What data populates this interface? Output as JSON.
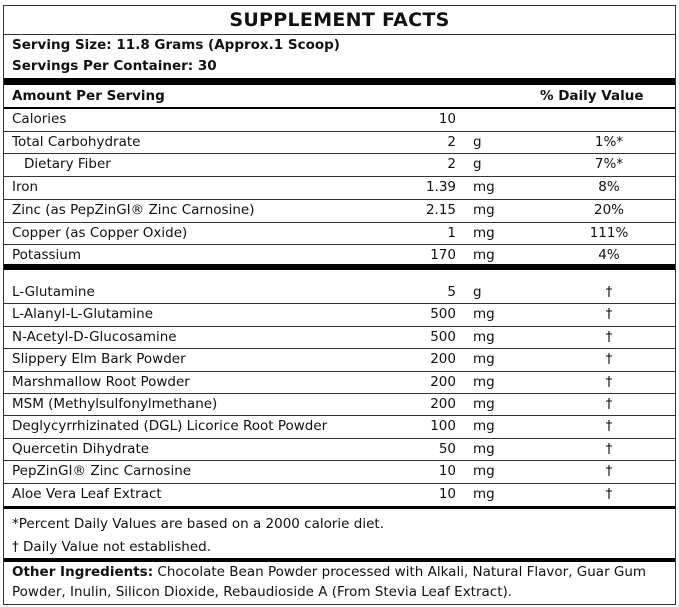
{
  "header": {
    "title": "SUPPLEMENT FACTS"
  },
  "serving": {
    "size": "Serving Size: 11.8 Grams (Approx.1 Scoop)",
    "per_container": "Servings Per Container: 30"
  },
  "table": {
    "header": {
      "amount": "Amount Per Serving",
      "daily_value": "% Daily Value"
    },
    "groups": [
      [
        {
          "name": "Calories",
          "amount": "10"
        },
        {
          "name": "Total Carbohydrate",
          "amount": "2",
          "unit": "g",
          "dv": "1%*"
        },
        {
          "name": "Dietary Fiber",
          "amount": "2",
          "unit": "g",
          "dv": "7%*",
          "indent": true
        },
        {
          "name": "Iron",
          "amount": "1.39",
          "unit": "mg",
          "dv": "8%"
        },
        {
          "name": "Zinc (as PepZinGI® Zinc Carnosine)",
          "amount": "2.15",
          "unit": "mg",
          "dv": "20%"
        },
        {
          "name": "Copper (as Copper Oxide)",
          "amount": "1",
          "unit": "mg",
          "dv": "111%"
        },
        {
          "name": "Potassium",
          "amount": "170",
          "unit": "mg",
          "dv": "4%"
        }
      ],
      [
        {
          "name": "L-Glutamine",
          "amount": "5",
          "unit": "g",
          "dv": "†"
        },
        {
          "name": "L-Alanyl-L-Glutamine",
          "amount": "500",
          "unit": "mg",
          "dv": "†"
        },
        {
          "name": "N-Acetyl-D-Glucosamine",
          "amount": "500",
          "unit": "mg",
          "dv": "†"
        },
        {
          "name": "Slippery Elm Bark Powder",
          "amount": "200",
          "unit": "mg",
          "dv": "†"
        },
        {
          "name": "Marshmallow Root Powder",
          "amount": "200",
          "unit": "mg",
          "dv": "†"
        },
        {
          "name": "MSM (Methylsulfonylmethane)",
          "amount": "200",
          "unit": "mg",
          "dv": "†"
        },
        {
          "name": "Deglycyrrhizinated (DGL) Licorice Root Powder",
          "amount": "100",
          "unit": "mg",
          "dv": "†"
        },
        {
          "name": "Quercetin Dihydrate",
          "amount": "50",
          "unit": "mg",
          "dv": "†"
        },
        {
          "name": "PepZinGI® Zinc Carnosine",
          "amount": "10",
          "unit": "mg",
          "dv": "†"
        },
        {
          "name": "Aloe Vera Leaf Extract",
          "amount": "10",
          "unit": "mg",
          "dv": "†"
        }
      ]
    ]
  },
  "footnotes": [
    "*Percent Daily Values are based on a 2000 calorie diet.",
    "† Daily Value not established."
  ],
  "other_ingredients": {
    "label": "Other Ingredients:",
    "text": "Chocolate Bean Powder processed with Alkali, Natural Flavor, Guar Gum Powder, Inulin, Silicon Dioxide, Rebaudioside A (From Stevia Leaf Extract)."
  }
}
